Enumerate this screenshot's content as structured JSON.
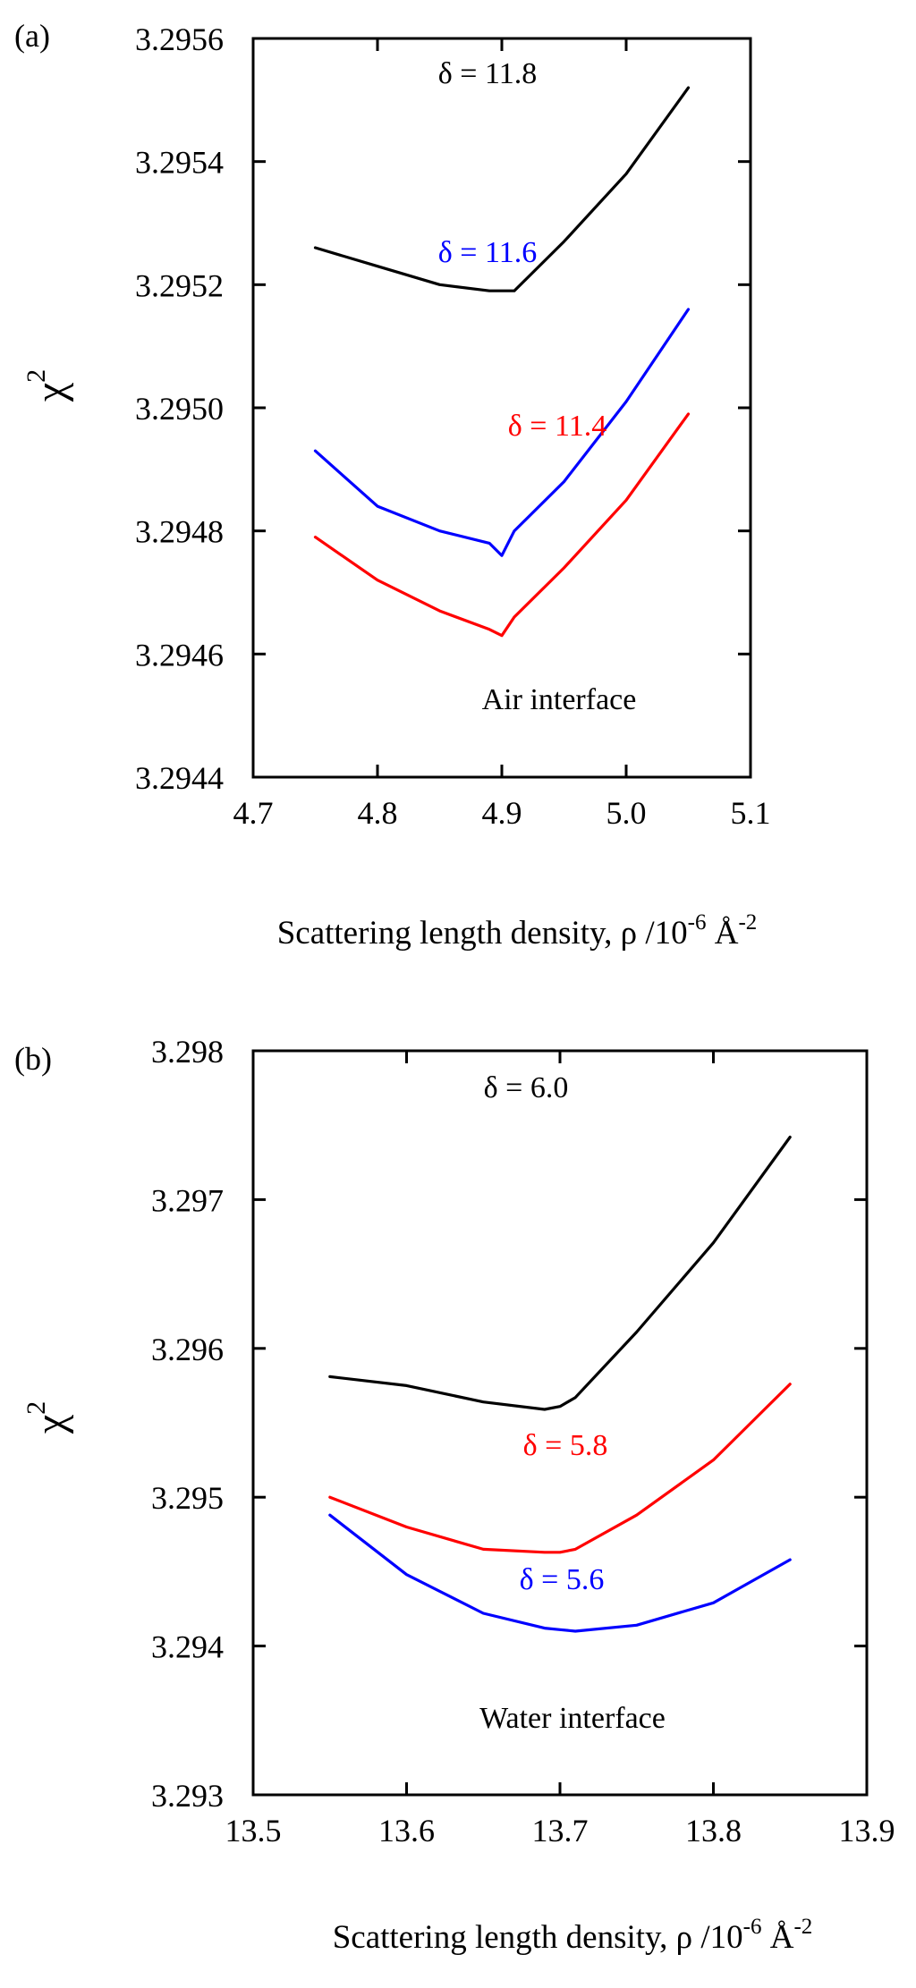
{
  "chart_data": [
    {
      "type": "line",
      "panel_label": "(a)",
      "title": "",
      "xlabel": {
        "text": "Scattering length density, ρ /10",
        "sup1": "-6",
        "unit": " Å",
        "sup2": "-2"
      },
      "ylabel": {
        "base": "χ",
        "sup": "2"
      },
      "xlim": [
        4.7,
        5.1
      ],
      "ylim": [
        3.2944,
        3.2956
      ],
      "xticks": [
        4.7,
        4.8,
        4.9,
        5.0,
        5.1
      ],
      "xtick_labels": [
        "4.7",
        "4.8",
        "4.9",
        "5.0",
        "5.1"
      ],
      "yticks": [
        3.2944,
        3.2946,
        3.2948,
        3.295,
        3.2952,
        3.2954,
        3.2956
      ],
      "ytick_labels": [
        "3.2944",
        "3.2946",
        "3.2948",
        "3.2950",
        "3.2952",
        "3.2954",
        "3.2956"
      ],
      "annotation": "Air interface",
      "grid": false,
      "series": [
        {
          "name": "δ = 11.8",
          "color": "#000000",
          "x": [
            4.75,
            4.8,
            4.85,
            4.89,
            4.91,
            4.95,
            5.0,
            5.05
          ],
          "y": [
            3.29526,
            3.29523,
            3.2952,
            3.29519,
            3.29519,
            3.29527,
            3.29538,
            3.29552
          ]
        },
        {
          "name": "δ = 11.6",
          "color": "#0000ff",
          "x": [
            4.75,
            4.8,
            4.85,
            4.89,
            4.9,
            4.91,
            4.95,
            5.0,
            5.05
          ],
          "y": [
            3.29493,
            3.29484,
            3.2948,
            3.29478,
            3.29476,
            3.2948,
            3.29488,
            3.29501,
            3.29516
          ]
        },
        {
          "name": "δ = 11.4",
          "color": "#ff0000",
          "x": [
            4.75,
            4.8,
            4.85,
            4.89,
            4.9,
            4.91,
            4.95,
            5.0,
            5.05
          ],
          "y": [
            3.29479,
            3.29472,
            3.29467,
            3.29464,
            3.29463,
            3.29466,
            3.29474,
            3.29485,
            3.29499
          ]
        }
      ]
    },
    {
      "type": "line",
      "panel_label": "(b)",
      "title": "",
      "xlabel": {
        "text": "Scattering length density, ρ /10",
        "sup1": "-6",
        "unit": " Å",
        "sup2": "-2"
      },
      "ylabel": {
        "base": "χ",
        "sup": "2"
      },
      "xlim": [
        13.5,
        13.9
      ],
      "ylim": [
        3.293,
        3.298
      ],
      "xticks": [
        13.5,
        13.6,
        13.7,
        13.8,
        13.9
      ],
      "xtick_labels": [
        "13.5",
        "13.6",
        "13.7",
        "13.8",
        "13.9"
      ],
      "yticks": [
        3.293,
        3.294,
        3.295,
        3.296,
        3.297,
        3.298
      ],
      "ytick_labels": [
        "3.293",
        "3.294",
        "3.295",
        "3.296",
        "3.297",
        "3.298"
      ],
      "annotation": "Water interface",
      "grid": false,
      "series": [
        {
          "name": "δ = 6.0",
          "color": "#000000",
          "x": [
            13.55,
            13.6,
            13.65,
            13.69,
            13.7,
            13.71,
            13.75,
            13.8,
            13.85
          ],
          "y": [
            3.29581,
            3.29575,
            3.29564,
            3.29559,
            3.29561,
            3.29567,
            3.29611,
            3.29671,
            3.29742
          ]
        },
        {
          "name": "δ = 5.8",
          "color": "#ff0000",
          "x": [
            13.55,
            13.6,
            13.65,
            13.69,
            13.7,
            13.71,
            13.75,
            13.8,
            13.85
          ],
          "y": [
            3.295,
            3.2948,
            3.29465,
            3.29463,
            3.29463,
            3.29465,
            3.29488,
            3.29525,
            3.29576
          ]
        },
        {
          "name": "δ = 5.6",
          "color": "#0000ff",
          "x": [
            13.55,
            13.6,
            13.65,
            13.69,
            13.7,
            13.71,
            13.75,
            13.8,
            13.85
          ],
          "y": [
            3.29488,
            3.29448,
            3.29422,
            3.29412,
            3.29411,
            3.2941,
            3.29414,
            3.29429,
            3.29458
          ]
        }
      ]
    }
  ]
}
